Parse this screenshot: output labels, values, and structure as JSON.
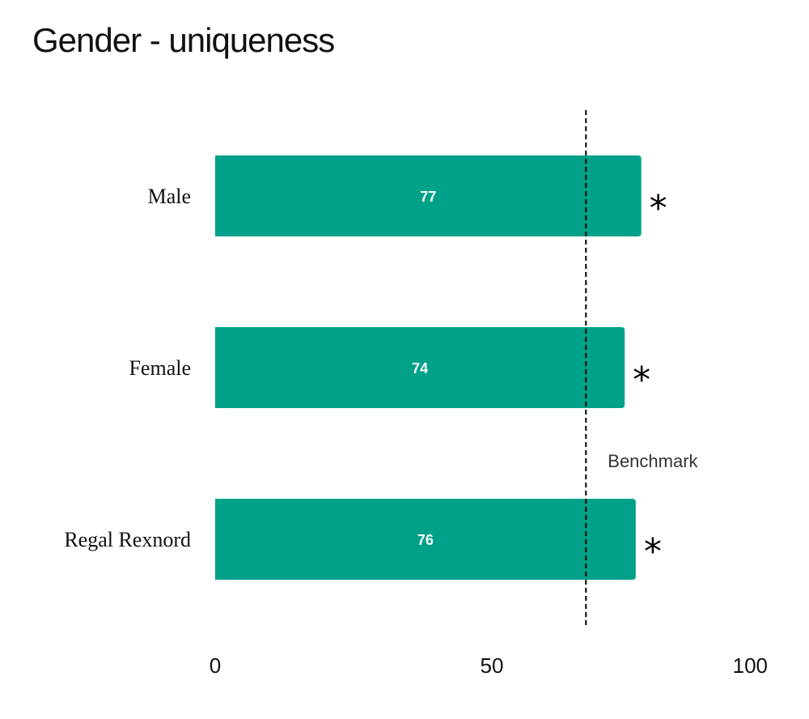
{
  "chart_data": {
    "type": "bar",
    "orientation": "horizontal",
    "title": "Gender - uniqueness",
    "categories": [
      "Male",
      "Female",
      "Regal Rexnord"
    ],
    "values": [
      77,
      74,
      76
    ],
    "value_labels": [
      "77",
      "74",
      "76"
    ],
    "significance_marks": [
      "*",
      "*",
      "*"
    ],
    "xlim": [
      0,
      100
    ],
    "x_ticks": [
      0,
      50,
      100
    ],
    "x_tick_labels": [
      "0",
      "50",
      "100"
    ],
    "benchmark": {
      "label": "Benchmark",
      "value": 67
    },
    "grid": false,
    "legend": "none",
    "xlabel": "",
    "ylabel": ""
  },
  "colors": {
    "bar": "#00a189",
    "benchmark_line": "#000000",
    "value_text": "#ffffff"
  }
}
